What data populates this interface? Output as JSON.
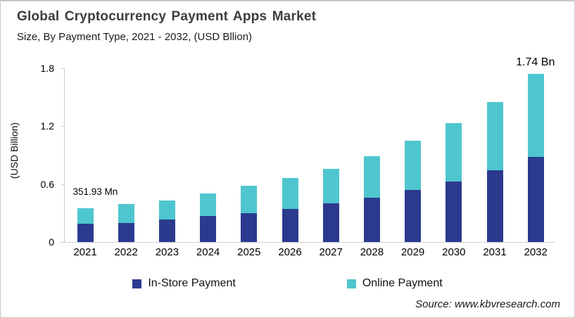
{
  "header": {
    "title": "Global Cryptocurrency Payment Apps Market",
    "subtitle": "Size, By Payment Type, 2021 - 2032, (USD Bllion)"
  },
  "chart_data": {
    "type": "bar",
    "stacked": true,
    "title": "Global Cryptocurrency Payment Apps Market Size, By Payment Type, 2021 - 2032, (USD Bllion)",
    "categories": [
      "2021",
      "2022",
      "2023",
      "2024",
      "2025",
      "2026",
      "2027",
      "2028",
      "2029",
      "2030",
      "2031",
      "2032"
    ],
    "series": [
      {
        "name": "In-Store Payment",
        "color": "#2b3a8f",
        "values": [
          0.19,
          0.2,
          0.23,
          0.27,
          0.3,
          0.34,
          0.4,
          0.46,
          0.54,
          0.63,
          0.74,
          0.88
        ]
      },
      {
        "name": "Online Payment",
        "color": "#4fc6cf",
        "values": [
          0.16,
          0.19,
          0.2,
          0.23,
          0.28,
          0.32,
          0.36,
          0.43,
          0.51,
          0.6,
          0.71,
          0.86
        ]
      }
    ],
    "xlabel": "",
    "ylabel": "(USD Billion)",
    "ylim": [
      0,
      1.8
    ],
    "yticks": [
      0,
      0.6,
      1.2,
      1.8
    ],
    "grid": false,
    "legend_position": "bottom",
    "annotations": [
      {
        "text": "351.93 Mn",
        "bar_index": 0,
        "align": "left"
      },
      {
        "text": "1.74 Bn",
        "bar_index": 11,
        "align": "center"
      }
    ]
  },
  "footer": {
    "source": "Source: www.kbvresearch.com"
  }
}
